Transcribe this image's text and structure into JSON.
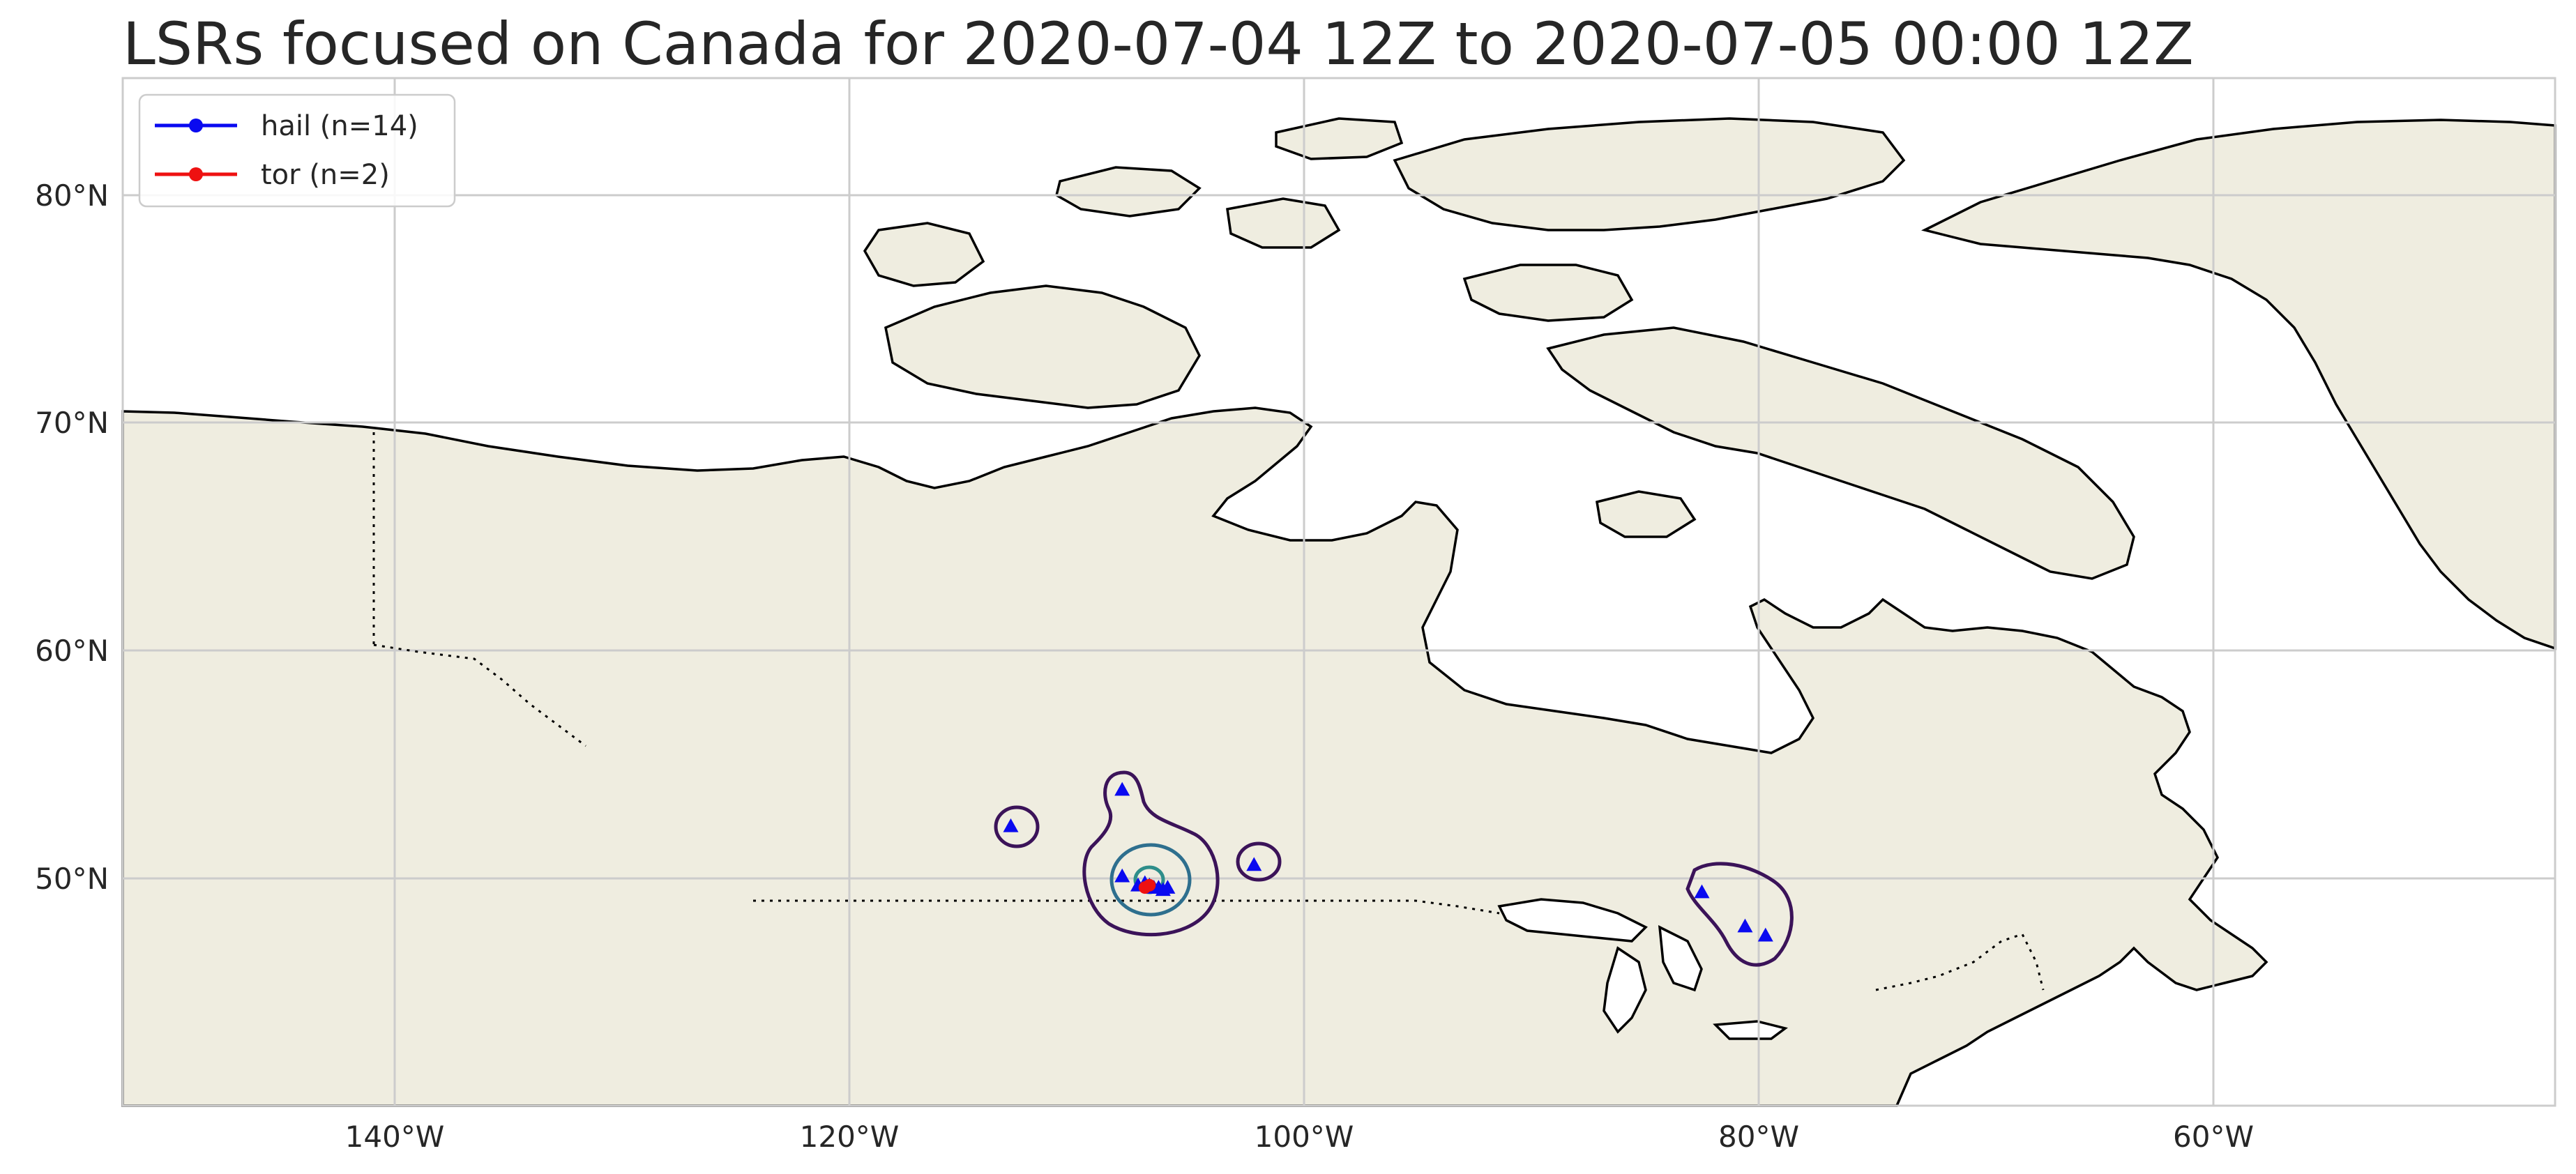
{
  "title": "LSRs focused on Canada for 2020-07-04 12Z to 2020-07-05 00:00 12Z",
  "colors": {
    "land": "#efede0",
    "ocean": "#ffffff",
    "grid": "#cccccc",
    "coast": "#000000",
    "hail": "#0a0af0",
    "tor": "#ee1111",
    "contour_outer": "#3b1359",
    "contour_inner": "#2e6f8e"
  },
  "axes": {
    "lon_range": [
      -152,
      -45
    ],
    "lat_range": [
      40,
      85
    ],
    "lon_ticks": [
      {
        "value": -140,
        "label": "140°W"
      },
      {
        "value": -120,
        "label": "120°W"
      },
      {
        "value": -100,
        "label": "100°W"
      },
      {
        "value": -80,
        "label": "80°W"
      },
      {
        "value": -60,
        "label": "60°W"
      }
    ],
    "lat_ticks": [
      {
        "value": 80,
        "label": "80°N"
      },
      {
        "value": 70,
        "label": "70°N"
      },
      {
        "value": 60,
        "label": "60°N"
      },
      {
        "value": 50,
        "label": "50°N"
      }
    ]
  },
  "legend": {
    "placement": "top-left",
    "entries": [
      {
        "label": "hail (n=14)",
        "color": "#0a0af0"
      },
      {
        "label": "tor (n=2)",
        "color": "#ee1111"
      }
    ]
  },
  "reports": {
    "hail": [
      {
        "lon": -112.9,
        "lat": 52.3
      },
      {
        "lon": -108.0,
        "lat": 53.9
      },
      {
        "lon": -108.0,
        "lat": 50.1
      },
      {
        "lon": -107.3,
        "lat": 49.7
      },
      {
        "lon": -106.6,
        "lat": 49.6
      },
      {
        "lon": -106.2,
        "lat": 49.5
      },
      {
        "lon": -106.0,
        "lat": 49.6
      },
      {
        "lon": -107.0,
        "lat": 49.8
      },
      {
        "lon": -106.8,
        "lat": 49.7
      },
      {
        "lon": -102.2,
        "lat": 50.6
      },
      {
        "lon": -82.5,
        "lat": 49.4
      },
      {
        "lon": -80.6,
        "lat": 47.9
      },
      {
        "lon": -79.7,
        "lat": 47.5
      },
      {
        "lon": -106.4,
        "lat": 49.6
      }
    ],
    "tor": [
      {
        "lon": -107.0,
        "lat": 49.6
      },
      {
        "lon": -106.8,
        "lat": 49.7
      }
    ]
  }
}
